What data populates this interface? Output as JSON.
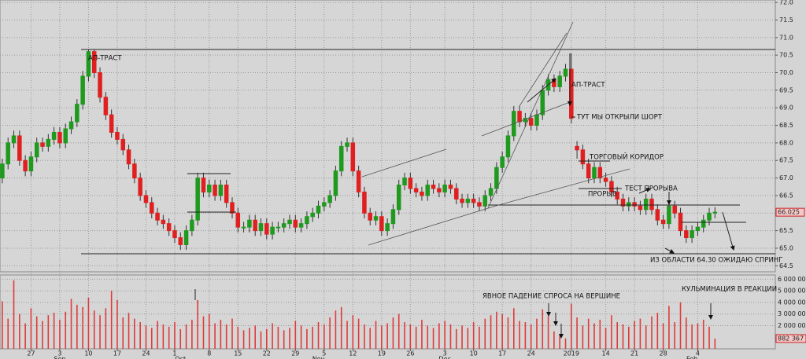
{
  "chart_data": {
    "type": "candlestick",
    "x": [
      0,
      1,
      2,
      3,
      4,
      5,
      6,
      7,
      8,
      9,
      10,
      11,
      12,
      13,
      14,
      15,
      16,
      17,
      18,
      19,
      20,
      21,
      22,
      23,
      24,
      25,
      26,
      27,
      28,
      29,
      30,
      31,
      32,
      33,
      34,
      35,
      36,
      37,
      38,
      39,
      40,
      41,
      42,
      43,
      44,
      45,
      46,
      47,
      48,
      49,
      50,
      51,
      52,
      53,
      54,
      55,
      56,
      57,
      58,
      59,
      60,
      61,
      62,
      63,
      64,
      65,
      66,
      67,
      68,
      69,
      70,
      71,
      72,
      73,
      74,
      75,
      76,
      77,
      78,
      79,
      80,
      81,
      82,
      83,
      84,
      85,
      86,
      87,
      88,
      89,
      90,
      91,
      92,
      93,
      94,
      95,
      96,
      97,
      98,
      99,
      100,
      101,
      102,
      103,
      104,
      105,
      106,
      107,
      108,
      109,
      110,
      111,
      112,
      113,
      114,
      115,
      116,
      117,
      118,
      119,
      120,
      121,
      122,
      123,
      124
    ],
    "open": [
      67.0,
      67.4,
      68.0,
      68.2,
      67.5,
      67.2,
      67.6,
      68.0,
      67.9,
      68.1,
      68.3,
      68.0,
      68.4,
      68.6,
      69.1,
      69.9,
      70.6,
      70.0,
      69.3,
      68.8,
      68.3,
      68.1,
      67.8,
      67.4,
      67.0,
      66.5,
      66.3,
      66.0,
      65.8,
      65.7,
      65.5,
      65.3,
      65.1,
      65.5,
      65.8,
      67.0,
      66.6,
      66.8,
      66.5,
      66.8,
      66.3,
      66.0,
      65.6,
      65.6,
      65.8,
      65.5,
      65.7,
      65.4,
      65.6,
      65.6,
      65.7,
      65.8,
      65.6,
      65.7,
      65.9,
      66.0,
      66.2,
      66.3,
      66.5,
      67.2,
      67.9,
      68.0,
      67.2,
      66.6,
      66.0,
      65.8,
      65.9,
      65.5,
      65.7,
      66.1,
      66.8,
      67.0,
      66.7,
      66.6,
      66.5,
      66.8,
      66.7,
      66.6,
      66.8,
      66.7,
      66.4,
      66.3,
      66.4,
      66.3,
      66.2,
      66.5,
      66.7,
      67.3,
      67.6,
      68.2,
      68.9,
      68.6,
      68.7,
      68.5,
      68.8,
      69.5,
      69.8,
      69.6,
      69.9,
      70.1,
      67.9,
      67.8,
      67.4,
      67.0,
      67.3,
      67.0,
      66.9,
      66.6,
      66.4,
      66.2,
      66.3,
      66.2,
      66.1,
      66.4,
      66.1,
      65.8,
      65.7,
      66.2,
      66.0,
      65.5,
      65.3,
      65.5,
      65.6,
      65.8,
      66.0
    ],
    "high": [
      67.55,
      68.15,
      68.35,
      68.35,
      67.65,
      67.75,
      68.15,
      68.15,
      68.25,
      68.45,
      68.45,
      68.55,
      68.75,
      69.25,
      70.05,
      70.65,
      70.65,
      70.15,
      69.45,
      68.95,
      68.45,
      68.25,
      67.95,
      67.55,
      67.15,
      66.65,
      66.45,
      66.15,
      65.95,
      65.85,
      65.65,
      65.45,
      65.65,
      65.95,
      67.15,
      67.15,
      66.95,
      66.95,
      66.95,
      66.95,
      66.45,
      66.15,
      65.75,
      65.95,
      65.95,
      65.85,
      65.85,
      65.75,
      65.75,
      65.85,
      65.95,
      65.95,
      65.85,
      66.05,
      66.15,
      66.35,
      66.45,
      66.65,
      67.35,
      68.05,
      68.15,
      68.15,
      67.35,
      66.75,
      66.15,
      66.05,
      66.05,
      65.85,
      66.25,
      66.95,
      67.15,
      67.15,
      66.85,
      66.75,
      66.95,
      66.95,
      66.85,
      66.95,
      66.95,
      66.85,
      66.55,
      66.55,
      66.55,
      66.45,
      66.65,
      66.85,
      67.45,
      67.75,
      68.35,
      69.05,
      69.05,
      68.85,
      68.85,
      68.95,
      69.65,
      69.95,
      69.95,
      70.05,
      70.25,
      70.55,
      68.05,
      67.95,
      67.55,
      67.45,
      67.45,
      67.15,
      67.05,
      66.75,
      66.55,
      66.45,
      66.45,
      66.35,
      66.55,
      66.55,
      66.25,
      65.95,
      66.35,
      66.35,
      66.15,
      65.65,
      65.65,
      65.75,
      65.95,
      66.15,
      66.17
    ],
    "low": [
      66.85,
      67.25,
      67.85,
      67.35,
      67.05,
      67.05,
      67.45,
      67.75,
      67.75,
      67.95,
      67.85,
      67.85,
      68.25,
      68.45,
      68.95,
      69.75,
      69.85,
      69.15,
      68.65,
      68.15,
      67.95,
      67.65,
      67.25,
      66.85,
      66.35,
      66.15,
      65.85,
      65.65,
      65.55,
      65.35,
      65.15,
      64.95,
      64.95,
      65.35,
      65.65,
      66.45,
      66.45,
      66.35,
      66.35,
      66.15,
      65.85,
      65.45,
      65.45,
      65.45,
      65.35,
      65.35,
      65.25,
      65.25,
      65.45,
      65.45,
      65.55,
      65.45,
      65.45,
      65.55,
      65.75,
      65.85,
      66.05,
      66.15,
      66.35,
      67.05,
      67.75,
      67.05,
      66.45,
      65.85,
      65.65,
      65.65,
      65.35,
      65.35,
      65.55,
      65.95,
      66.65,
      66.55,
      66.45,
      66.35,
      66.35,
      66.55,
      66.45,
      66.45,
      66.55,
      66.25,
      66.15,
      66.15,
      66.15,
      66.05,
      66.05,
      66.35,
      66.55,
      67.15,
      67.45,
      68.05,
      68.45,
      68.45,
      68.35,
      68.35,
      68.65,
      69.35,
      69.45,
      69.45,
      69.75,
      68.55,
      67.55,
      67.25,
      66.85,
      66.85,
      66.85,
      66.75,
      66.45,
      66.25,
      66.05,
      66.05,
      66.05,
      65.95,
      65.95,
      65.95,
      65.65,
      65.55,
      65.55,
      65.85,
      65.35,
      65.15,
      65.15,
      65.35,
      65.45,
      65.65,
      65.85
    ],
    "close": [
      67.4,
      68.0,
      68.2,
      67.5,
      67.2,
      67.6,
      68.0,
      67.9,
      68.1,
      68.3,
      68.0,
      68.4,
      68.6,
      69.1,
      69.9,
      70.6,
      70.0,
      69.3,
      68.8,
      68.3,
      68.1,
      67.8,
      67.4,
      67.0,
      66.5,
      66.3,
      66.0,
      65.8,
      65.7,
      65.5,
      65.3,
      65.1,
      65.5,
      65.8,
      67.0,
      66.6,
      66.8,
      66.5,
      66.8,
      66.3,
      66.0,
      65.6,
      65.6,
      65.8,
      65.5,
      65.7,
      65.4,
      65.6,
      65.6,
      65.7,
      65.8,
      65.6,
      65.7,
      65.9,
      66.0,
      66.2,
      66.3,
      66.5,
      67.2,
      67.9,
      68.0,
      67.2,
      66.6,
      66.0,
      65.8,
      65.9,
      65.5,
      65.7,
      66.1,
      66.8,
      67.0,
      66.7,
      66.6,
      66.5,
      66.8,
      66.7,
      66.6,
      66.8,
      66.7,
      66.4,
      66.3,
      66.4,
      66.3,
      66.2,
      66.5,
      66.7,
      67.3,
      67.6,
      68.2,
      68.9,
      68.6,
      68.7,
      68.5,
      68.8,
      69.5,
      69.8,
      69.6,
      69.9,
      70.1,
      68.7,
      67.8,
      67.4,
      67.0,
      67.3,
      67.0,
      66.9,
      66.6,
      66.4,
      66.2,
      66.3,
      66.2,
      66.1,
      66.4,
      66.1,
      65.8,
      65.7,
      66.2,
      66.0,
      65.5,
      65.3,
      65.5,
      65.6,
      65.8,
      66.0,
      66.025
    ],
    "volume": [
      4100000,
      2600000,
      5900000,
      3000000,
      2200000,
      3500000,
      2800000,
      2400000,
      2900000,
      3100000,
      2500000,
      3200000,
      4300000,
      3800000,
      3600000,
      4400000,
      3300000,
      2900000,
      3500000,
      5000000,
      4200000,
      2700000,
      3100000,
      2600000,
      2300000,
      2000000,
      1800000,
      2400000,
      2100000,
      1900000,
      2300000,
      1700000,
      2100000,
      2500000,
      4200000,
      2800000,
      3000000,
      2200000,
      2500000,
      2100000,
      2600000,
      1900000,
      1600000,
      1800000,
      2000000,
      1500000,
      1700000,
      2200000,
      1900000,
      1600000,
      1800000,
      2400000,
      2000000,
      1700000,
      1900000,
      2300000,
      2100000,
      2700000,
      3300000,
      3600000,
      2400000,
      2900000,
      2600000,
      2100000,
      1800000,
      2400000,
      2000000,
      2200000,
      2700000,
      3000000,
      2300000,
      2100000,
      1900000,
      2500000,
      2000000,
      1800000,
      2200000,
      2400000,
      2100000,
      1700000,
      2000000,
      1800000,
      2300000,
      1900000,
      2600000,
      2900000,
      3200000,
      3000000,
      2700000,
      3500000,
      2400000,
      2300000,
      2100000,
      2600000,
      3400000,
      2800000,
      1500000,
      1200000,
      900000,
      3900000,
      2700000,
      2000000,
      2600000,
      2200000,
      2500000,
      1800000,
      2900000,
      2300000,
      2100000,
      1900000,
      2400000,
      2600000,
      2000000,
      2800000,
      3100000,
      2200000,
      3700000,
      2300000,
      4000000,
      2700000,
      2100000,
      2200000,
      2500000,
      1900000,
      882367
    ],
    "up_color": "#1f9a1f",
    "down_color": "#e02020",
    "volume_color": "#e03a3a",
    "grid": true,
    "xlim": [
      -0.4,
      134.5
    ],
    "xticks": [
      {
        "value": 5,
        "label": "27"
      },
      {
        "value": 10,
        "label": "3"
      },
      {
        "value": 15,
        "label": "10"
      },
      {
        "value": 20,
        "label": "17"
      },
      {
        "value": 25,
        "label": "24"
      },
      {
        "value": 30,
        "label": "1"
      },
      {
        "value": 36,
        "label": "8"
      },
      {
        "value": 41,
        "label": "15"
      },
      {
        "value": 46,
        "label": "22"
      },
      {
        "value": 51,
        "label": "29"
      },
      {
        "value": 56,
        "label": "5"
      },
      {
        "value": 61,
        "label": "12"
      },
      {
        "value": 66,
        "label": "19"
      },
      {
        "value": 71,
        "label": "26"
      },
      {
        "value": 77,
        "label": "3"
      },
      {
        "value": 82,
        "label": "10"
      },
      {
        "value": 87,
        "label": "17"
      },
      {
        "value": 92,
        "label": "24"
      },
      {
        "value": 99,
        "label": "2019"
      },
      {
        "value": 105,
        "label": "14"
      },
      {
        "value": 110,
        "label": "21"
      },
      {
        "value": 115,
        "label": "28"
      },
      {
        "value": 121,
        "label": "4"
      }
    ],
    "month_ticks": [
      {
        "value": 10,
        "label": "Sep"
      },
      {
        "value": 31,
        "label": "Oct"
      },
      {
        "value": 55,
        "label": "Nov"
      },
      {
        "value": 77,
        "label": "Dec"
      },
      {
        "value": 120,
        "label": "Feb"
      }
    ],
    "ylim": [
      64.35,
      72.07
    ],
    "yticks": [
      64.5,
      {
        "value": 65,
        "label": "65.0"
      },
      65.5,
      {
        "value": 66,
        "label": "66.0"
      },
      66.5,
      {
        "value": 67,
        "label": "67.0"
      },
      67.5,
      {
        "value": 68,
        "label": "68.0"
      },
      68.5,
      {
        "value": 69,
        "label": "69.0"
      },
      69.5,
      {
        "value": 70,
        "label": "70.0"
      },
      70.5,
      {
        "value": 71,
        "label": "71.0"
      },
      71.5,
      {
        "value": 72,
        "label": "72.0"
      }
    ],
    "current_price": 66.025,
    "volume_ylim": [
      0,
      6300000
    ],
    "volume_ticks": [
      {
        "value": 2000000,
        "label": "2 000 000"
      },
      {
        "value": 3000000,
        "label": "3 000 000"
      },
      {
        "value": 4000000,
        "label": "4 000 000"
      },
      {
        "value": 5000000,
        "label": "5 000 000"
      },
      {
        "value": 6000000,
        "label": "6 000 000"
      }
    ],
    "current_volume": {
      "value": 882367,
      "label": "882 367"
    },
    "annotations": [
      "АП-ТРАСТ",
      "АП-ТРАСТ",
      "ТУТ МЫ ОТКРЫЛИ ШОРТ",
      "ТОРГОВЫЙ КОРИДОР",
      "ПРОРЫВ",
      "ТЕСТ ПРОРЫВА",
      "ИЗ ОБЛАСТИ 64.30 ОЖИДАЮ СПРИНГ",
      "ЯВНОЕ ПАДЕНИЕ СПРОСА НА ВЕРШИНЕ",
      "КУЛЬМИНАЦИЯ В РЕАКЦИИ"
    ]
  }
}
